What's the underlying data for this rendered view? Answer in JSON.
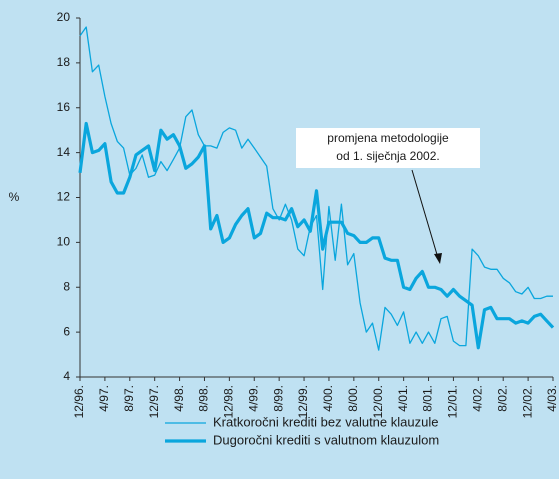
{
  "chart_data": {
    "type": "line",
    "y_label": "%",
    "categories": [
      "12/96.",
      null,
      null,
      null,
      "4/97.",
      null,
      null,
      null,
      "8/97.",
      null,
      null,
      null,
      "12/97.",
      null,
      null,
      null,
      "4/98.",
      null,
      null,
      null,
      "8/98.",
      null,
      null,
      null,
      "12/98.",
      null,
      null,
      null,
      "4/99.",
      null,
      null,
      null,
      "8/99.",
      null,
      null,
      null,
      "12/99.",
      null,
      null,
      null,
      "4/00.",
      null,
      null,
      null,
      "8/00.",
      null,
      null,
      null,
      "12/00.",
      null,
      null,
      null,
      "4/01.",
      null,
      null,
      null,
      "8/01.",
      null,
      null,
      null,
      "12/01.",
      null,
      null,
      null,
      "4/02.",
      null,
      null,
      null,
      "8/02.",
      null,
      null,
      null,
      "12/02.",
      null,
      null,
      null,
      "4/03."
    ],
    "series": [
      {
        "name": "Kratkoročni krediti bez valutne klauzule",
        "color": "#0aa6dd",
        "width": 1.3,
        "values": [
          19.2,
          19.6,
          17.6,
          17.9,
          16.5,
          15.3,
          14.5,
          14.2,
          13.0,
          13.3,
          13.9,
          12.9,
          13.0,
          13.6,
          13.2,
          13.7,
          14.2,
          15.6,
          15.9,
          14.8,
          14.3,
          14.3,
          14.2,
          14.9,
          15.1,
          15.0,
          14.2,
          14.6,
          14.2,
          13.8,
          13.4,
          11.5,
          11.0,
          11.7,
          11.0,
          9.7,
          9.4,
          10.7,
          11.2,
          7.9,
          11.6,
          9.2,
          11.7,
          9.0,
          9.5,
          7.3,
          6.0,
          6.4,
          5.2,
          7.1,
          6.8,
          6.3,
          6.9,
          5.5,
          6.0,
          5.5,
          6.0,
          5.5,
          6.6,
          6.7,
          5.6,
          5.4,
          5.4,
          9.7,
          9.4,
          8.9,
          8.8,
          8.8,
          8.4,
          8.2,
          7.8,
          7.7,
          8.0,
          7.5,
          7.5,
          7.6,
          7.6
        ]
      },
      {
        "name": "Dugoročni krediti s valutnom klauzulom",
        "color": "#0aa6dd",
        "width": 3.2,
        "values": [
          13.1,
          15.3,
          14.0,
          14.1,
          14.4,
          12.7,
          12.2,
          12.2,
          12.9,
          13.9,
          14.1,
          14.3,
          13.2,
          15.0,
          14.6,
          14.8,
          14.3,
          13.3,
          13.5,
          13.8,
          14.3,
          10.6,
          11.2,
          10.0,
          10.2,
          10.8,
          11.2,
          11.5,
          10.2,
          10.4,
          11.3,
          11.1,
          11.1,
          11.0,
          11.5,
          10.7,
          11.0,
          10.5,
          12.3,
          9.7,
          10.9,
          10.9,
          10.9,
          10.4,
          10.3,
          10.0,
          10.0,
          10.2,
          10.2,
          9.3,
          9.2,
          9.2,
          8.0,
          7.9,
          8.4,
          8.7,
          8.0,
          8.0,
          7.9,
          7.6,
          7.9,
          7.6,
          7.4,
          7.2,
          5.3,
          7.0,
          7.1,
          6.6,
          6.6,
          6.6,
          6.4,
          6.5,
          6.4,
          6.7,
          6.8,
          6.5,
          6.2
        ]
      }
    ],
    "ylim": [
      4,
      20
    ],
    "yticks": [
      4,
      6,
      8,
      10,
      12,
      14,
      16,
      18,
      20
    ],
    "grid": false,
    "annotation": [
      "promjena metodologije",
      "od 1. siječnja 2002."
    ]
  }
}
